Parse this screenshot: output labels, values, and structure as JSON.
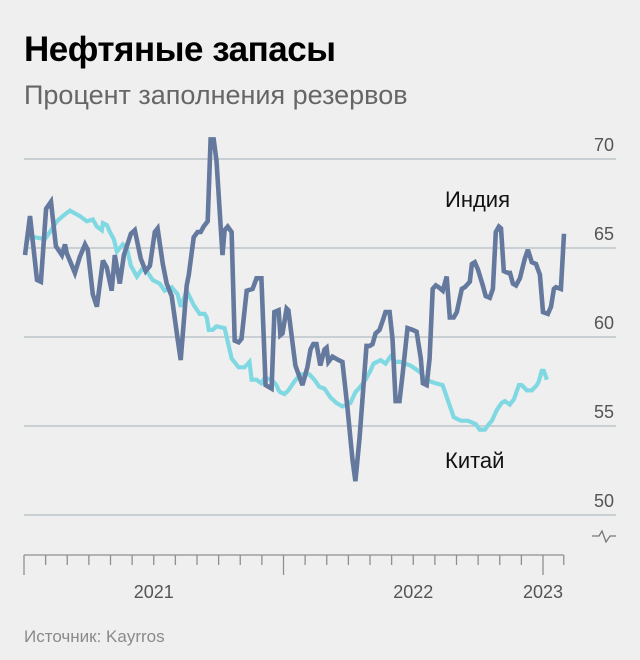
{
  "header": {
    "title": "Нефтяные запасы",
    "subtitle": "Процент заполнения резервов"
  },
  "footer": {
    "source": "Источник: Kayrros"
  },
  "chart_data": {
    "type": "line",
    "title": "Нефтяные запасы",
    "subtitle": "Процент заполнения резервов",
    "xlabel": "",
    "ylabel": "",
    "ylim": [
      50,
      70
    ],
    "y_ticks": [
      "50",
      "55",
      "60",
      "65",
      "70"
    ],
    "y_axis_side": "right",
    "y_axis_break": true,
    "xlim": [
      2021.0,
      2023.08
    ],
    "x_ticks": [
      {
        "label": "2021",
        "position": 2021.5
      },
      {
        "label": "2022",
        "position": 2022.5
      },
      {
        "label": "2023",
        "position": 2023.0
      }
    ],
    "grid": true,
    "legend": "inline",
    "colors": {
      "India": "#65799e",
      "China": "#80d9e2",
      "grid": "#bcc6cc",
      "axis": "#8f8f8f"
    },
    "series": [
      {
        "name": "Индия",
        "label": "Индия",
        "points": [
          [
            2021.004,
            64.6
          ],
          [
            2021.023,
            66.8
          ],
          [
            2021.05,
            63.2
          ],
          [
            2021.065,
            63.1
          ],
          [
            2021.085,
            67.2
          ],
          [
            2021.104,
            67.6
          ],
          [
            2021.123,
            65.1
          ],
          [
            2021.146,
            64.6
          ],
          [
            2021.158,
            65.2
          ],
          [
            2021.165,
            64.7
          ],
          [
            2021.196,
            63.6
          ],
          [
            2021.215,
            64.5
          ],
          [
            2021.235,
            65.2
          ],
          [
            2021.246,
            64.9
          ],
          [
            2021.265,
            62.4
          ],
          [
            2021.281,
            61.7
          ],
          [
            2021.304,
            64.3
          ],
          [
            2021.319,
            63.9
          ],
          [
            2021.338,
            62.6
          ],
          [
            2021.35,
            64.6
          ],
          [
            2021.369,
            63.0
          ],
          [
            2021.385,
            64.6
          ],
          [
            2021.412,
            65.8
          ],
          [
            2021.427,
            66.0
          ],
          [
            2021.45,
            64.4
          ],
          [
            2021.469,
            63.7
          ],
          [
            2021.485,
            64.0
          ],
          [
            2021.504,
            65.9
          ],
          [
            2021.515,
            66.1
          ],
          [
            2021.535,
            64.1
          ],
          [
            2021.55,
            63.0
          ],
          [
            2021.569,
            62.3
          ],
          [
            2021.592,
            59.9
          ],
          [
            2021.604,
            58.7
          ],
          [
            2021.627,
            62.9
          ],
          [
            2021.635,
            63.5
          ],
          [
            2021.654,
            65.6
          ],
          [
            2021.669,
            65.9
          ],
          [
            2021.681,
            65.9
          ],
          [
            2021.692,
            66.2
          ],
          [
            2021.708,
            66.5
          ],
          [
            2021.719,
            71.1
          ],
          [
            2021.731,
            71.1
          ],
          [
            2021.742,
            69.9
          ],
          [
            2021.765,
            64.6
          ],
          [
            2021.773,
            66.0
          ],
          [
            2021.785,
            66.2
          ],
          [
            2021.8,
            65.9
          ],
          [
            2021.812,
            59.8
          ],
          [
            2021.827,
            59.7
          ],
          [
            2021.838,
            59.9
          ],
          [
            2021.858,
            62.6
          ],
          [
            2021.881,
            62.7
          ],
          [
            2021.896,
            63.3
          ],
          [
            2021.915,
            63.3
          ],
          [
            2021.931,
            57.3
          ],
          [
            2021.954,
            57.1
          ],
          [
            2021.965,
            61.4
          ],
          [
            2021.981,
            61.5
          ],
          [
            2021.988,
            60.1
          ],
          [
            2021.996,
            60.2
          ],
          [
            2022.012,
            61.6
          ],
          [
            2022.019,
            61.5
          ],
          [
            2022.046,
            58.4
          ],
          [
            2022.073,
            57.3
          ],
          [
            2022.092,
            58.3
          ],
          [
            2022.104,
            59.3
          ],
          [
            2022.115,
            59.6
          ],
          [
            2022.127,
            59.6
          ],
          [
            2022.142,
            58.4
          ],
          [
            2022.158,
            59.3
          ],
          [
            2022.166,
            59.4
          ],
          [
            2022.173,
            58.6
          ],
          [
            2022.189,
            58.9
          ],
          [
            2022.212,
            58.7
          ],
          [
            2022.227,
            58.6
          ],
          [
            2022.246,
            56.1
          ],
          [
            2022.266,
            53.1
          ],
          [
            2022.277,
            51.9
          ],
          [
            2022.293,
            54.3
          ],
          [
            2022.305,
            56.6
          ],
          [
            2022.32,
            59.5
          ],
          [
            2022.332,
            59.5
          ],
          [
            2022.343,
            59.6
          ],
          [
            2022.355,
            60.2
          ],
          [
            2022.37,
            60.4
          ],
          [
            2022.382,
            60.9
          ],
          [
            2022.393,
            61.4
          ],
          [
            2022.409,
            61.4
          ],
          [
            2022.42,
            59.9
          ],
          [
            2022.432,
            56.4
          ],
          [
            2022.447,
            56.4
          ],
          [
            2022.459,
            57.9
          ],
          [
            2022.478,
            60.5
          ],
          [
            2022.498,
            60.4
          ],
          [
            2022.513,
            60.3
          ],
          [
            2022.529,
            58.8
          ],
          [
            2022.537,
            57.4
          ],
          [
            2022.552,
            57.3
          ],
          [
            2022.563,
            58.8
          ],
          [
            2022.575,
            62.7
          ],
          [
            2022.587,
            62.9
          ],
          [
            2022.598,
            62.8
          ],
          [
            2022.614,
            62.6
          ],
          [
            2022.629,
            63.4
          ],
          [
            2022.641,
            61.1
          ],
          [
            2022.656,
            61.1
          ],
          [
            2022.668,
            61.4
          ],
          [
            2022.687,
            62.7
          ],
          [
            2022.699,
            62.8
          ],
          [
            2022.718,
            63.1
          ],
          [
            2022.726,
            64.1
          ],
          [
            2022.737,
            64.2
          ],
          [
            2022.749,
            63.8
          ],
          [
            2022.768,
            62.9
          ],
          [
            2022.779,
            62.3
          ],
          [
            2022.795,
            62.2
          ],
          [
            2022.807,
            62.7
          ],
          [
            2022.818,
            65.9
          ],
          [
            2022.83,
            66.2
          ],
          [
            2022.838,
            66.1
          ],
          [
            2022.849,
            63.7
          ],
          [
            2022.865,
            63.6
          ],
          [
            2022.873,
            63.6
          ],
          [
            2022.884,
            63.0
          ],
          [
            2022.896,
            62.9
          ],
          [
            2022.911,
            63.3
          ],
          [
            2022.93,
            64.4
          ],
          [
            2022.942,
            64.9
          ],
          [
            2022.957,
            64.2
          ],
          [
            2022.973,
            64.1
          ],
          [
            2022.988,
            63.5
          ],
          [
            2023.0,
            61.4
          ],
          [
            2023.019,
            61.3
          ],
          [
            2023.031,
            61.7
          ],
          [
            2023.042,
            62.7
          ],
          [
            2023.05,
            62.8
          ],
          [
            2023.069,
            62.7
          ],
          [
            2023.081,
            65.8
          ]
        ]
      },
      {
        "name": "Китай",
        "label": "Китай",
        "points": [
          [
            2021.004,
            65.5
          ],
          [
            2021.042,
            65.6
          ],
          [
            2021.081,
            65.5
          ],
          [
            2021.1,
            65.9
          ],
          [
            2021.127,
            66.5
          ],
          [
            2021.15,
            66.8
          ],
          [
            2021.177,
            67.1
          ],
          [
            2021.215,
            66.8
          ],
          [
            2021.242,
            66.5
          ],
          [
            2021.265,
            66.6
          ],
          [
            2021.281,
            66.2
          ],
          [
            2021.3,
            66.0
          ],
          [
            2021.304,
            66.4
          ],
          [
            2021.319,
            66.3
          ],
          [
            2021.331,
            65.9
          ],
          [
            2021.346,
            65.5
          ],
          [
            2021.358,
            64.8
          ],
          [
            2021.381,
            65.2
          ],
          [
            2021.396,
            65.0
          ],
          [
            2021.412,
            64.0
          ],
          [
            2021.435,
            63.4
          ],
          [
            2021.454,
            63.8
          ],
          [
            2021.473,
            63.7
          ],
          [
            2021.496,
            63.2
          ],
          [
            2021.523,
            63.0
          ],
          [
            2021.542,
            62.6
          ],
          [
            2021.569,
            62.8
          ],
          [
            2021.592,
            62.4
          ],
          [
            2021.604,
            61.7
          ],
          [
            2021.627,
            62.6
          ],
          [
            2021.654,
            61.8
          ],
          [
            2021.677,
            61.3
          ],
          [
            2021.696,
            61.3
          ],
          [
            2021.704,
            61.1
          ],
          [
            2021.712,
            60.4
          ],
          [
            2021.727,
            60.4
          ],
          [
            2021.742,
            60.6
          ],
          [
            2021.773,
            60.5
          ],
          [
            2021.8,
            58.8
          ],
          [
            2021.827,
            58.3
          ],
          [
            2021.85,
            58.3
          ],
          [
            2021.869,
            58.6
          ],
          [
            2021.877,
            57.6
          ],
          [
            2021.896,
            57.6
          ],
          [
            2021.915,
            57.4
          ],
          [
            2021.927,
            57.7
          ],
          [
            2021.954,
            57.6
          ],
          [
            2021.973,
            57.3
          ],
          [
            2021.981,
            57.0
          ],
          [
            2021.988,
            56.9
          ],
          [
            2022.004,
            56.8
          ],
          [
            2022.019,
            57.0
          ],
          [
            2022.042,
            57.5
          ],
          [
            2022.065,
            57.9
          ],
          [
            2022.1,
            57.9
          ],
          [
            2022.119,
            57.6
          ],
          [
            2022.138,
            57.2
          ],
          [
            2022.158,
            57.1
          ],
          [
            2022.181,
            56.6
          ],
          [
            2022.204,
            56.3
          ],
          [
            2022.227,
            56.1
          ],
          [
            2022.258,
            56.3
          ],
          [
            2022.277,
            56.9
          ],
          [
            2022.296,
            57.2
          ],
          [
            2022.316,
            57.6
          ],
          [
            2022.335,
            58.1
          ],
          [
            2022.347,
            58.5
          ],
          [
            2022.374,
            58.7
          ],
          [
            2022.393,
            58.5
          ],
          [
            2022.412,
            58.9
          ],
          [
            2022.432,
            58.6
          ],
          [
            2022.451,
            58.6
          ],
          [
            2022.47,
            58.5
          ],
          [
            2022.489,
            58.4
          ],
          [
            2022.509,
            58.2
          ],
          [
            2022.528,
            58.0
          ],
          [
            2022.547,
            57.6
          ],
          [
            2022.567,
            57.5
          ],
          [
            2022.586,
            57.4
          ],
          [
            2022.613,
            57.3
          ],
          [
            2022.625,
            56.8
          ],
          [
            2022.656,
            55.5
          ],
          [
            2022.683,
            55.3
          ],
          [
            2022.71,
            55.3
          ],
          [
            2022.726,
            55.2
          ],
          [
            2022.741,
            55.1
          ],
          [
            2022.756,
            54.8
          ],
          [
            2022.776,
            54.8
          ],
          [
            2022.791,
            55.1
          ],
          [
            2022.803,
            55.3
          ],
          [
            2022.822,
            55.9
          ],
          [
            2022.841,
            56.3
          ],
          [
            2022.853,
            56.4
          ],
          [
            2022.872,
            56.2
          ],
          [
            2022.888,
            56.5
          ],
          [
            2022.907,
            57.3
          ],
          [
            2022.918,
            57.3
          ],
          [
            2022.938,
            57.0
          ],
          [
            2022.957,
            57.0
          ],
          [
            2022.976,
            57.3
          ],
          [
            2022.984,
            57.5
          ],
          [
            2022.995,
            58.1
          ],
          [
            2023.003,
            58.1
          ],
          [
            2023.015,
            57.6
          ]
        ]
      }
    ]
  }
}
